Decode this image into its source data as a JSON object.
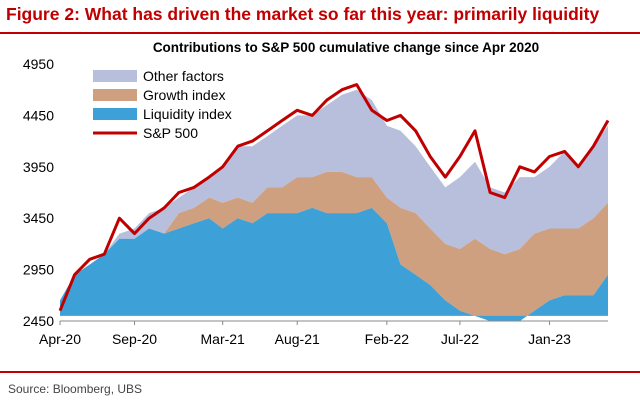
{
  "figure_title": "Figure 2: What has driven the market so far this year: primarily liquidity",
  "source": "Source: Bloomberg, UBS",
  "colors": {
    "other": "#b7bfdc",
    "growth": "#cfa080",
    "liquidity": "#3da0d6",
    "sp500": "#c00000",
    "title_accent": "#c00000"
  },
  "chart_data": {
    "type": "area",
    "title": "Contributions to S&P 500 cumulative change since Apr 2020",
    "xlabel": "",
    "ylabel": "",
    "ylim": [
      2450,
      4950
    ],
    "yticks": [
      4950,
      4450,
      3950,
      3450,
      2950,
      2450
    ],
    "xticks": [
      "Apr-20",
      "Sep-20",
      "Mar-21",
      "Aug-21",
      "Feb-22",
      "Jul-22",
      "Jan-23"
    ],
    "xtick_dates": [
      "2020-04-01",
      "2020-09-01",
      "2021-03-01",
      "2021-08-01",
      "2022-02-01",
      "2022-07-01",
      "2023-01-01"
    ],
    "grid": false,
    "legend": {
      "position": "top-left",
      "entries": [
        "Other factors",
        "Growth index",
        "Liquidity index",
        "S&P 500"
      ]
    },
    "base": 2500,
    "dates": [
      "2020-04-01",
      "2020-05-01",
      "2020-06-01",
      "2020-07-01",
      "2020-08-01",
      "2020-09-01",
      "2020-10-01",
      "2020-11-01",
      "2020-12-01",
      "2021-01-01",
      "2021-02-01",
      "2021-03-01",
      "2021-04-01",
      "2021-05-01",
      "2021-06-01",
      "2021-07-01",
      "2021-08-01",
      "2021-09-01",
      "2021-10-01",
      "2021-11-01",
      "2021-12-01",
      "2022-01-01",
      "2022-02-01",
      "2022-03-01",
      "2022-04-01",
      "2022-05-01",
      "2022-06-01",
      "2022-07-01",
      "2022-08-01",
      "2022-09-01",
      "2022-10-01",
      "2022-11-01",
      "2022-12-01",
      "2023-01-01",
      "2023-02-01",
      "2023-03-01",
      "2023-04-01",
      "2023-05-01"
    ],
    "series": [
      {
        "name": "Liquidity index",
        "values": [
          2650,
          2900,
          3000,
          3100,
          3250,
          3250,
          3350,
          3300,
          3350,
          3400,
          3450,
          3350,
          3450,
          3400,
          3500,
          3500,
          3500,
          3550,
          3500,
          3500,
          3500,
          3550,
          3400,
          3000,
          2900,
          2800,
          2650,
          2550,
          2500,
          2450,
          2450,
          2450,
          2550,
          2650,
          2700,
          2700,
          2700,
          2900
        ]
      },
      {
        "name": "Growth index",
        "values": [
          2650,
          2900,
          3000,
          3100,
          3250,
          3250,
          3350,
          3300,
          3500,
          3550,
          3650,
          3600,
          3650,
          3600,
          3750,
          3750,
          3850,
          3850,
          3900,
          3900,
          3850,
          3850,
          3650,
          3550,
          3500,
          3350,
          3200,
          3150,
          3250,
          3150,
          3100,
          3150,
          3300,
          3350,
          3350,
          3350,
          3450,
          3600
        ]
      },
      {
        "name": "Other factors",
        "values": [
          2650,
          2900,
          3000,
          3100,
          3300,
          3350,
          3500,
          3550,
          3650,
          3750,
          3850,
          3950,
          4150,
          4150,
          4250,
          4350,
          4450,
          4450,
          4550,
          4650,
          4700,
          4600,
          4350,
          4300,
          4150,
          3950,
          3750,
          3850,
          4000,
          3750,
          3700,
          3850,
          3850,
          3950,
          4100,
          3950,
          4150,
          4350
        ]
      },
      {
        "name": "S&P 500",
        "values": [
          2550,
          2900,
          3050,
          3100,
          3450,
          3300,
          3450,
          3550,
          3700,
          3750,
          3850,
          3950,
          4150,
          4200,
          4300,
          4400,
          4500,
          4450,
          4600,
          4700,
          4750,
          4500,
          4400,
          4450,
          4300,
          4050,
          3850,
          4050,
          4300,
          3700,
          3650,
          3950,
          3900,
          4050,
          4100,
          3950,
          4150,
          4400
        ]
      }
    ]
  }
}
